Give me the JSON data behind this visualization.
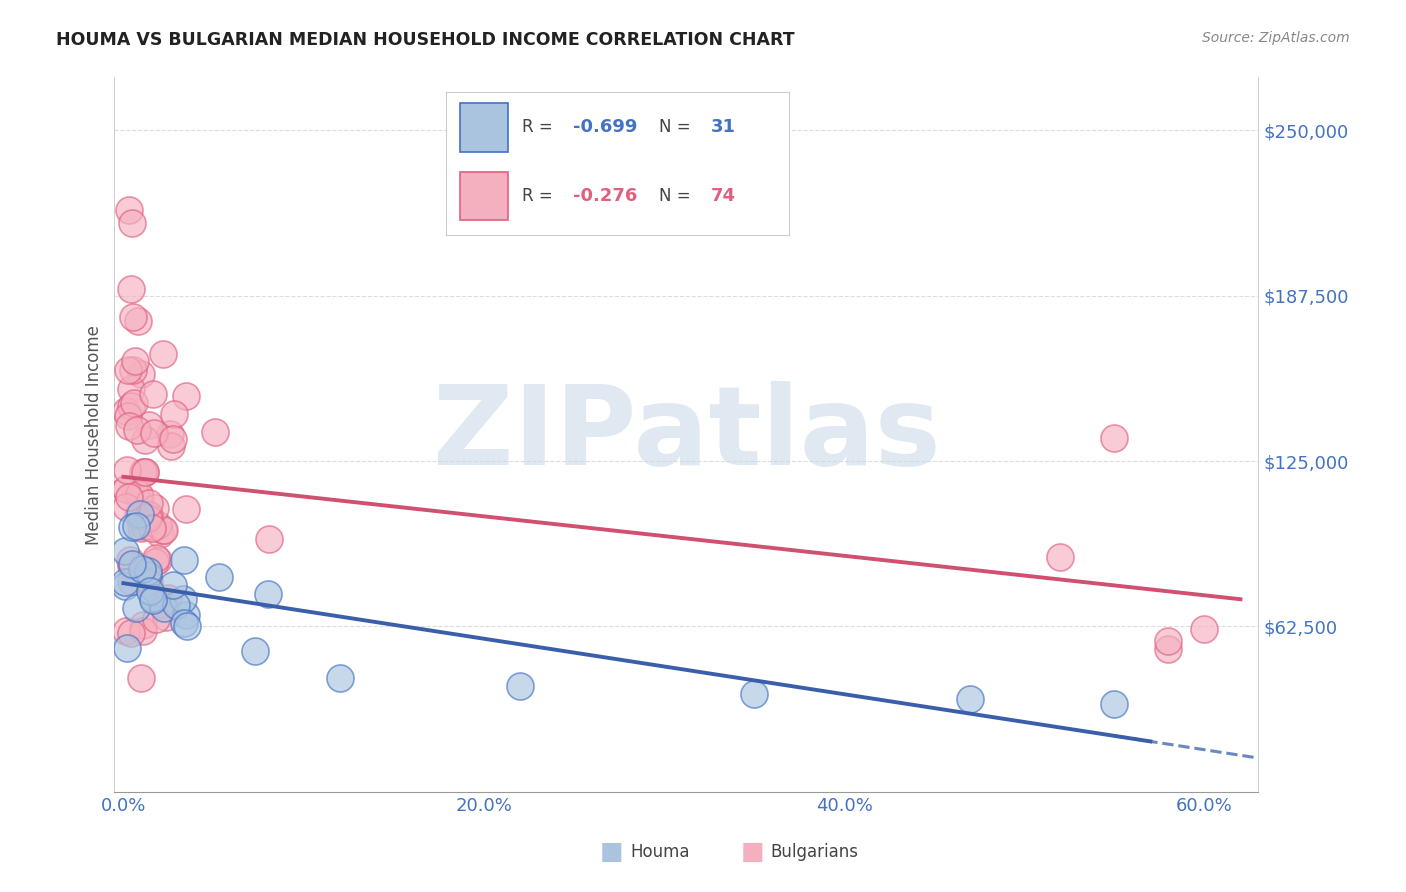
{
  "title": "HOUMA VS BULGARIAN MEDIAN HOUSEHOLD INCOME CORRELATION CHART",
  "source": "Source: ZipAtlas.com",
  "ylabel": "Median Household Income",
  "y_tick_labels": [
    "$62,500",
    "$125,000",
    "$187,500",
    "$250,000"
  ],
  "y_tick_values": [
    62500,
    125000,
    187500,
    250000
  ],
  "ylim": [
    0,
    270000
  ],
  "xlim": [
    -0.005,
    0.63
  ],
  "x_tick_labels": [
    "0.0%",
    "20.0%",
    "40.0%",
    "60.0%"
  ],
  "x_tick_values": [
    0.0,
    0.2,
    0.4,
    0.6
  ],
  "houma_face_color": "#aac4e0",
  "houma_edge_color": "#4472c4",
  "bulg_face_color": "#f5b0c0",
  "bulg_edge_color": "#e06080",
  "houma_line_color": "#3a5faa",
  "bulg_line_color": "#d05070",
  "legend_blue_face": "#aac4e0",
  "legend_pink_face": "#f5b0c0",
  "watermark_text": "ZIPatlas",
  "watermark_color": "#c8d8e8",
  "background_color": "#ffffff",
  "grid_color": "#dddddd",
  "title_color": "#222222",
  "source_color": "#888888",
  "axis_label_color": "#555555",
  "tick_color": "#4472c4"
}
